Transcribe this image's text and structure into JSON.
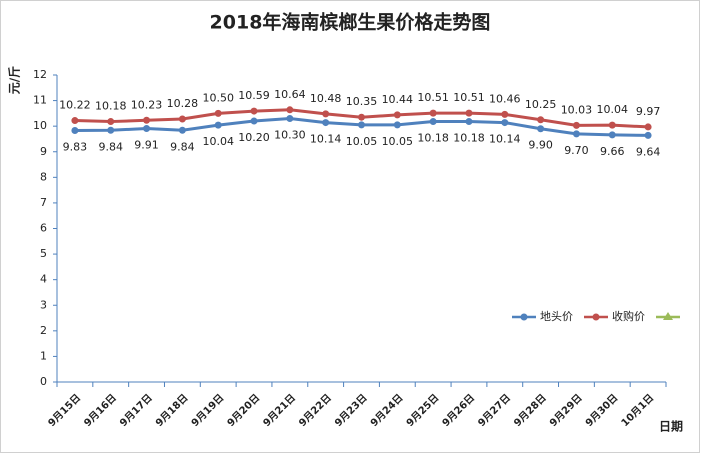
{
  "chart_data": {
    "type": "line",
    "title": "2018年海南槟榔生果价格走势图",
    "y_label": "元/斤",
    "x_label": "日期",
    "categories": [
      "9月15日",
      "9月16日",
      "9月17日",
      "9月18日",
      "9月19日",
      "9月20日",
      "9月21日",
      "9月22日",
      "9月23日",
      "9月24日",
      "9月25日",
      "9月26日",
      "9月27日",
      "9月28日",
      "9月29日",
      "9月30日",
      "10月1日"
    ],
    "series": [
      {
        "name": "地头价",
        "color": "#4f81bd",
        "label_pos": "below",
        "values": [
          9.83,
          9.84,
          9.91,
          9.84,
          10.04,
          10.2,
          10.3,
          10.14,
          10.05,
          10.05,
          10.18,
          10.18,
          10.14,
          9.9,
          9.7,
          9.66,
          9.64
        ],
        "value_labels": [
          "9.83",
          "9.84",
          "9.91",
          "9.84",
          "10.04",
          "10.20",
          "10.30",
          "10.14",
          "10.05",
          "10.05",
          "10.18",
          "10.18",
          "10.14",
          "9.90",
          "9.70",
          "9.66",
          "9.64"
        ]
      },
      {
        "name": "收购价",
        "color": "#c0504d",
        "label_pos": "above",
        "values": [
          10.22,
          10.18,
          10.23,
          10.28,
          10.5,
          10.59,
          10.64,
          10.48,
          10.35,
          10.44,
          10.51,
          10.51,
          10.46,
          10.25,
          10.03,
          10.04,
          9.97
        ],
        "value_labels": [
          "10.22",
          "10.18",
          "10.23",
          "10.28",
          "10.50",
          "10.59",
          "10.64",
          "10.48",
          "10.35",
          "10.44",
          "10.51",
          "10.51",
          "10.46",
          "10.25",
          "10.03",
          "10.04",
          "9.97"
        ]
      }
    ],
    "ylim": [
      0,
      12
    ],
    "yticks": [
      0,
      1,
      2,
      3,
      4,
      5,
      6,
      7,
      8,
      9,
      10,
      11,
      12
    ],
    "grid": false,
    "legend": "right"
  }
}
